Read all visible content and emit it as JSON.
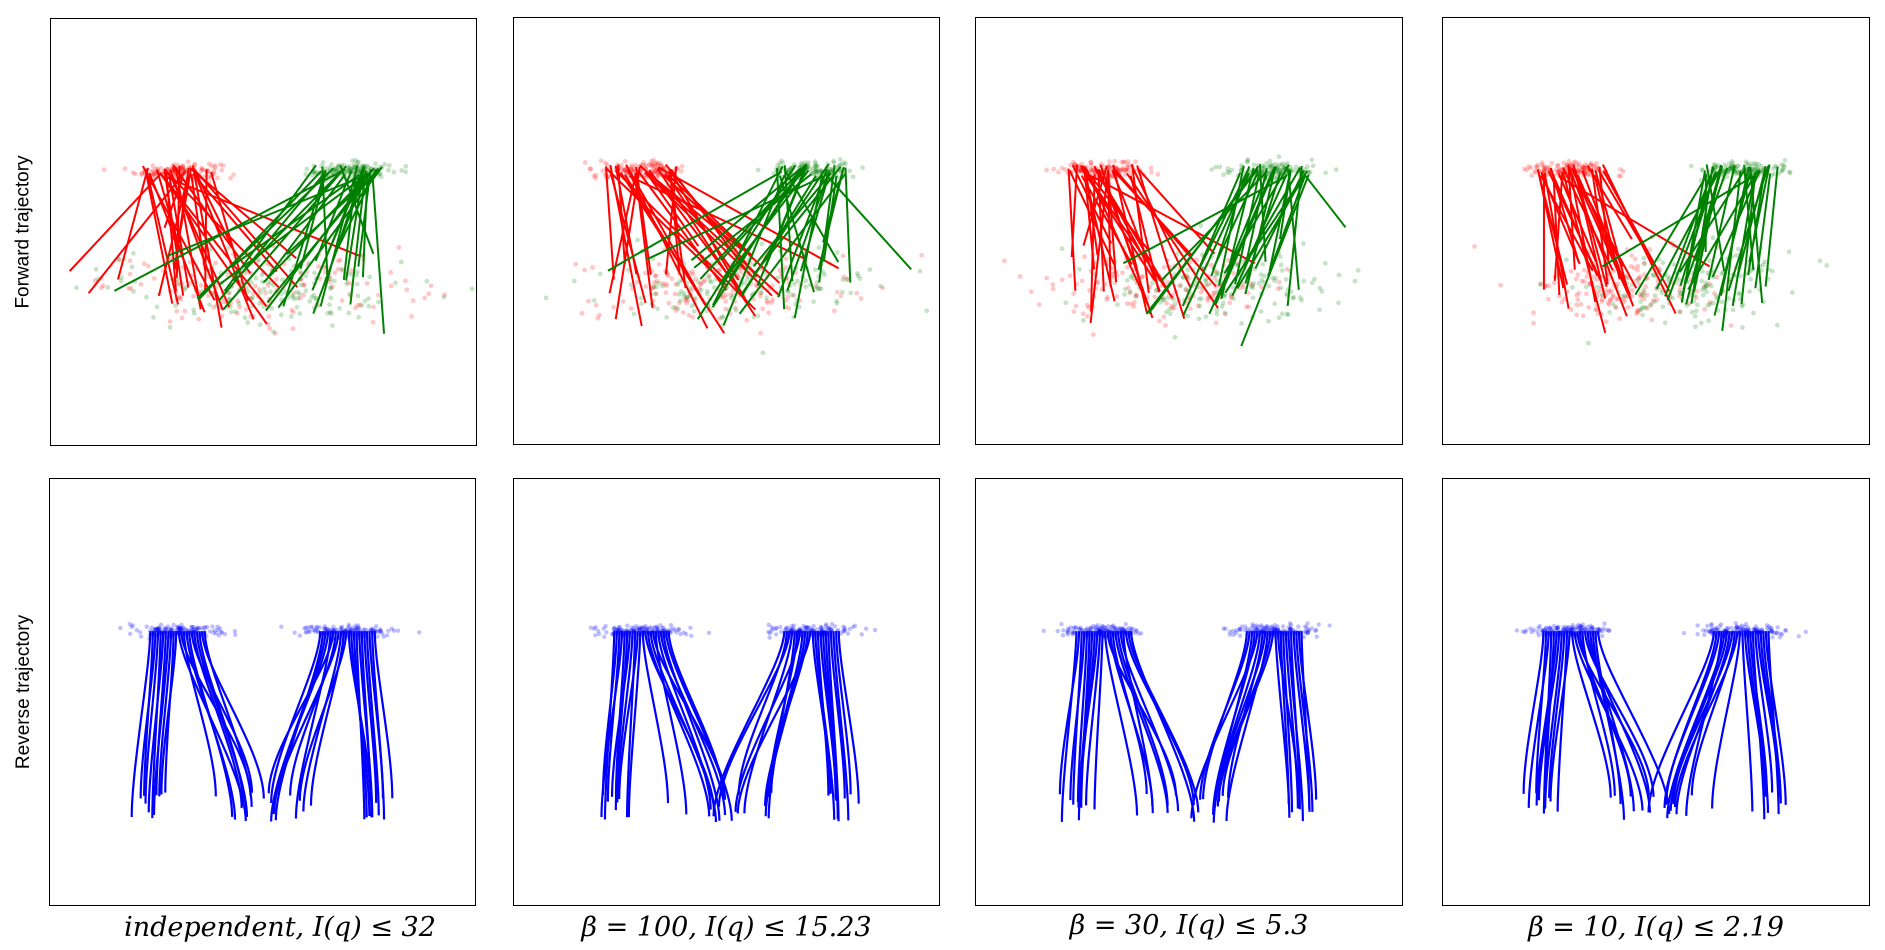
{
  "figure": {
    "row_labels": [
      "Forward trajectory",
      "Reverse trajectory"
    ],
    "captions": [
      "independent, I(q) ≤ 32",
      "β = 100, I(q) ≤ 15.23",
      "β = 30, I(q) ≤ 5.3",
      "β = 10, I(q) ≤ 2.19"
    ]
  },
  "chart_data": [
    {
      "type": "scatter",
      "row": "Forward trajectory",
      "column": "independent, I(q) ≤ 32",
      "mix": 0.0,
      "series": [
        {
          "color": "#ff0000",
          "source_center": [
            -1.4,
            1.0
          ],
          "target_center": [
            0.0,
            -0.9
          ],
          "lines": 32
        },
        {
          "color": "#008000",
          "source_center": [
            1.4,
            1.0
          ],
          "target_center": [
            0.0,
            -0.9
          ],
          "lines": 32
        }
      ],
      "xlim": [
        -3.5,
        3.5
      ],
      "ylim": [
        -3.5,
        3.5
      ],
      "grid": false,
      "legend": "none"
    },
    {
      "type": "scatter",
      "row": "Forward trajectory",
      "column": "β = 100, I(q) ≤ 15.23",
      "mix": 0.35,
      "series": [
        {
          "color": "#ff0000",
          "source_center": [
            -1.4,
            1.0
          ],
          "target_center": [
            -0.2,
            -0.9
          ],
          "lines": 32
        },
        {
          "color": "#008000",
          "source_center": [
            1.4,
            1.0
          ],
          "target_center": [
            0.2,
            -0.9
          ],
          "lines": 32
        }
      ],
      "xlim": [
        -3.5,
        3.5
      ],
      "ylim": [
        -3.5,
        3.5
      ],
      "grid": false,
      "legend": "none"
    },
    {
      "type": "scatter",
      "row": "Forward trajectory",
      "column": "β = 30, I(q) ≤ 5.3",
      "mix": 0.65,
      "series": [
        {
          "color": "#ff0000",
          "source_center": [
            -1.4,
            1.0
          ],
          "target_center": [
            -0.4,
            -0.9
          ],
          "lines": 32
        },
        {
          "color": "#008000",
          "source_center": [
            1.4,
            1.0
          ],
          "target_center": [
            0.4,
            -0.9
          ],
          "lines": 32
        }
      ],
      "xlim": [
        -3.5,
        3.5
      ],
      "ylim": [
        -3.5,
        3.5
      ],
      "grid": false,
      "legend": "none"
    },
    {
      "type": "scatter",
      "row": "Forward trajectory",
      "column": "β = 10, I(q) ≤ 2.19",
      "mix": 0.9,
      "series": [
        {
          "color": "#ff0000",
          "source_center": [
            -1.4,
            1.0
          ],
          "target_center": [
            -0.55,
            -0.9
          ],
          "lines": 32
        },
        {
          "color": "#008000",
          "source_center": [
            1.4,
            1.0
          ],
          "target_center": [
            0.55,
            -0.9
          ],
          "lines": 32
        }
      ],
      "xlim": [
        -3.5,
        3.5
      ],
      "ylim": [
        -3.5,
        3.5
      ],
      "grid": false,
      "legend": "none"
    },
    {
      "type": "line",
      "row": "Reverse trajectory",
      "column": "independent, I(q) ≤ 32",
      "series": [
        {
          "color": "#0000ff",
          "cluster_center": [
            -1.4,
            1.0
          ],
          "end_y": -1.9,
          "lines": 22
        },
        {
          "color": "#0000ff",
          "cluster_center": [
            1.4,
            1.0
          ],
          "end_y": -1.9,
          "lines": 22
        }
      ],
      "xlim": [
        -3.5,
        3.5
      ],
      "ylim": [
        -3.5,
        3.5
      ],
      "grid": false,
      "legend": "none"
    },
    {
      "type": "line",
      "row": "Reverse trajectory",
      "column": "β = 100, I(q) ≤ 15.23",
      "series": [
        {
          "color": "#0000ff",
          "cluster_center": [
            -1.4,
            1.0
          ],
          "end_y": -1.9,
          "lines": 22
        },
        {
          "color": "#0000ff",
          "cluster_center": [
            1.4,
            1.0
          ],
          "end_y": -1.9,
          "lines": 22
        }
      ],
      "xlim": [
        -3.5,
        3.5
      ],
      "ylim": [
        -3.5,
        3.5
      ],
      "grid": false,
      "legend": "none"
    },
    {
      "type": "line",
      "row": "Reverse trajectory",
      "column": "β = 30, I(q) ≤ 5.3",
      "series": [
        {
          "color": "#0000ff",
          "cluster_center": [
            -1.4,
            1.0
          ],
          "end_y": -1.9,
          "lines": 22
        },
        {
          "color": "#0000ff",
          "cluster_center": [
            1.4,
            1.0
          ],
          "end_y": -1.9,
          "lines": 22
        }
      ],
      "xlim": [
        -3.5,
        3.5
      ],
      "ylim": [
        -3.5,
        3.5
      ],
      "grid": false,
      "legend": "none"
    },
    {
      "type": "line",
      "row": "Reverse trajectory",
      "column": "β = 10, I(q) ≤ 2.19",
      "series": [
        {
          "color": "#0000ff",
          "cluster_center": [
            -1.4,
            1.0
          ],
          "end_y": -1.9,
          "lines": 22
        },
        {
          "color": "#0000ff",
          "cluster_center": [
            1.4,
            1.0
          ],
          "end_y": -1.9,
          "lines": 22
        }
      ],
      "xlim": [
        -3.5,
        3.5
      ],
      "ylim": [
        -3.5,
        3.5
      ],
      "grid": false,
      "legend": "none"
    }
  ]
}
